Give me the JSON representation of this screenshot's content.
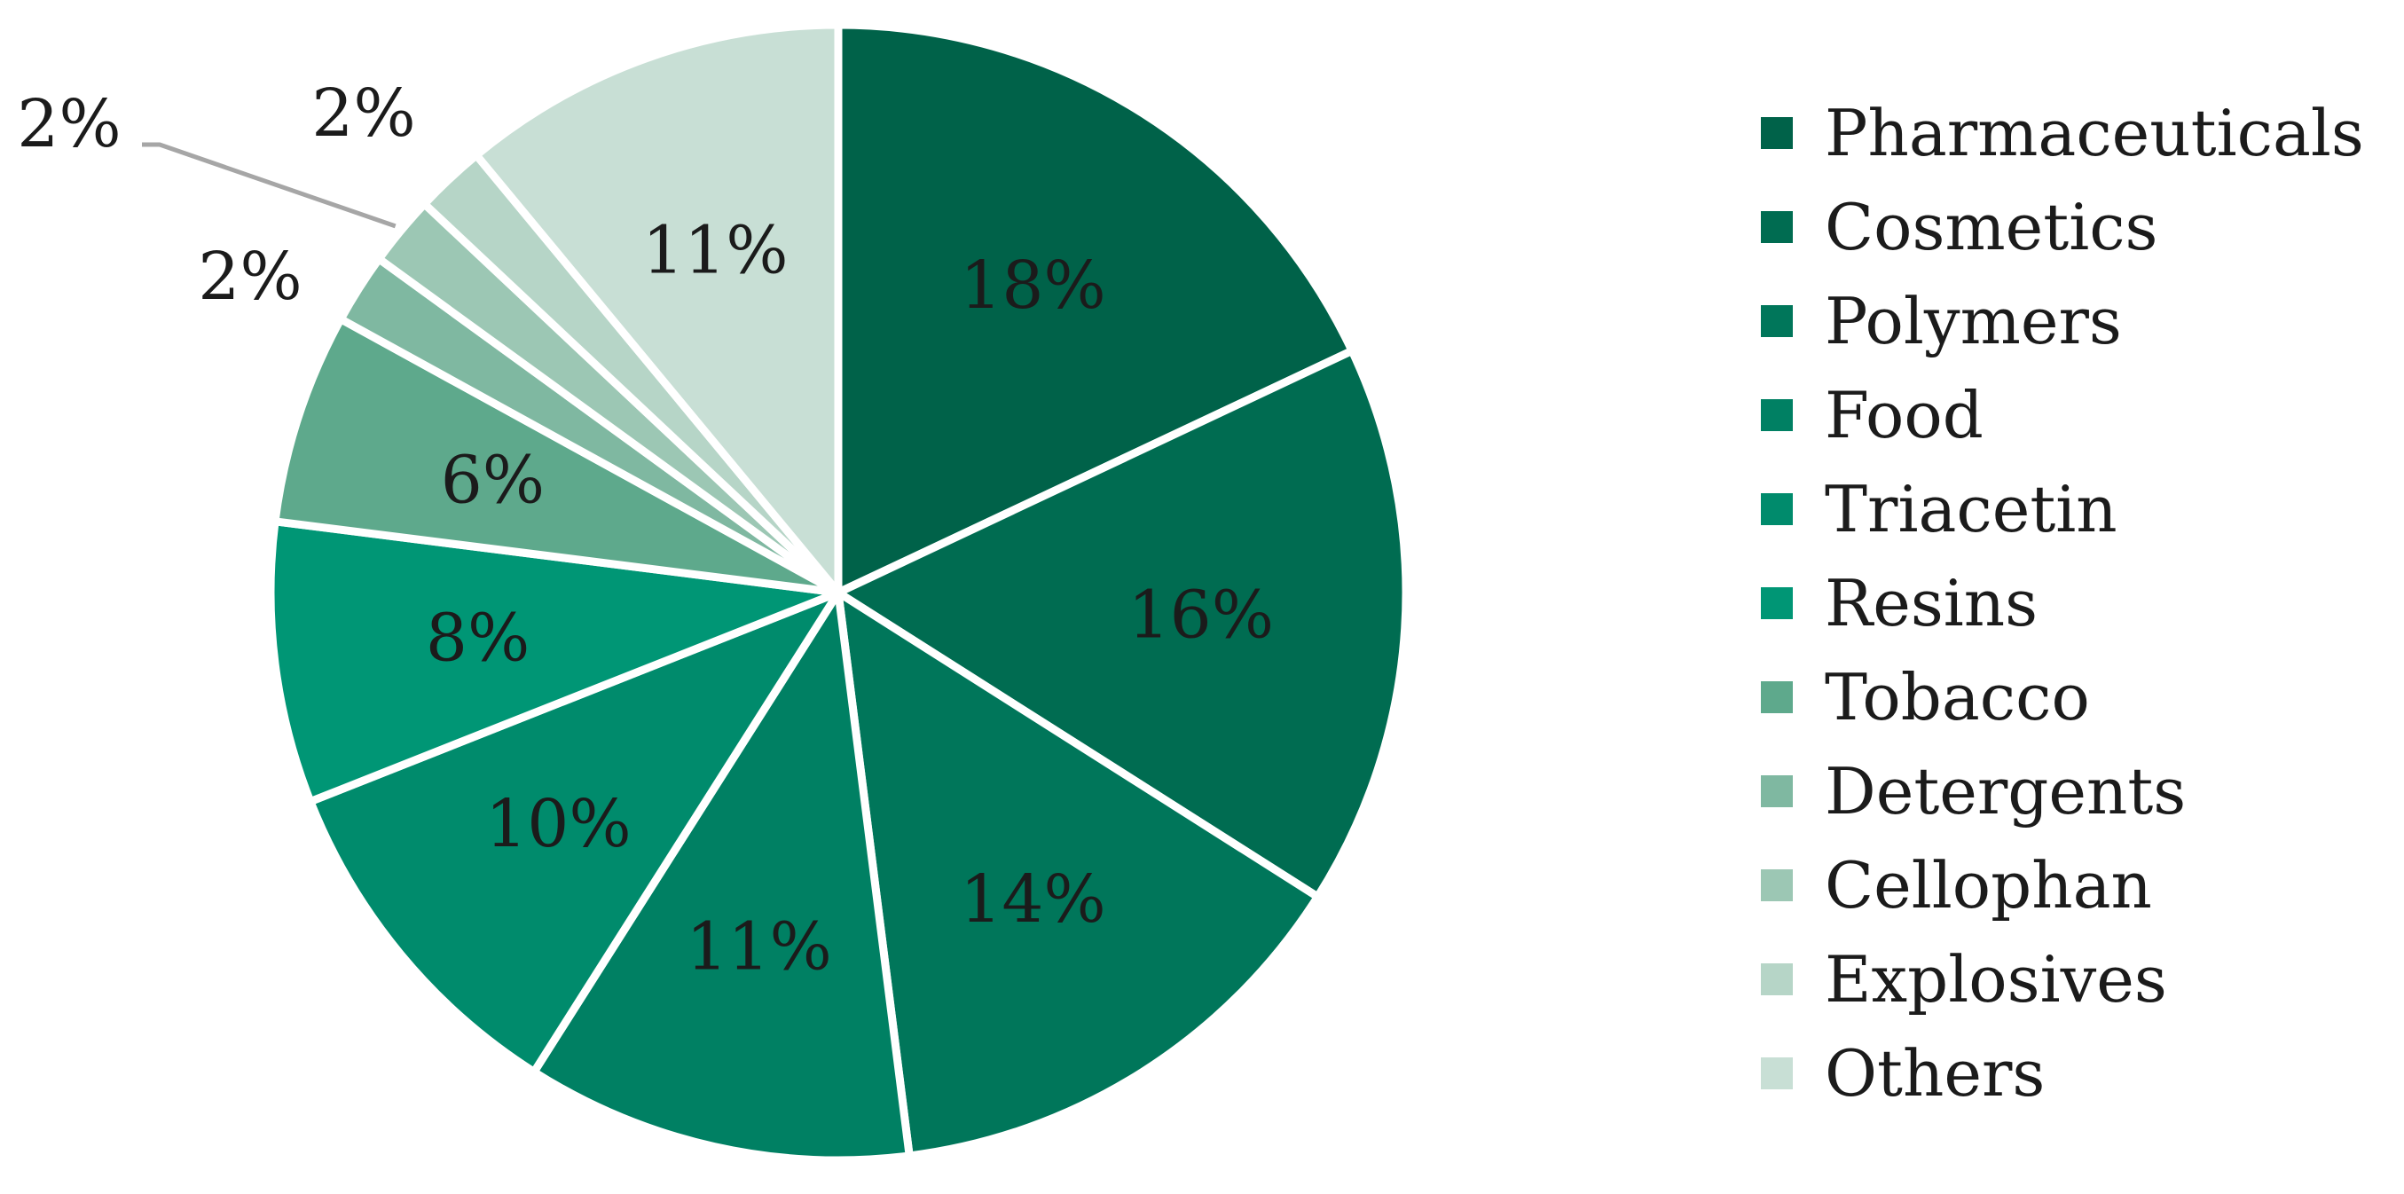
{
  "chart_data": {
    "type": "pie",
    "title": "",
    "legend_position": "right",
    "slices": [
      {
        "name": "Pharmaceuticals",
        "value": 18,
        "label": "18%",
        "color": "#006249"
      },
      {
        "name": "Cosmetics",
        "value": 16,
        "label": "16%",
        "color": "#006c51"
      },
      {
        "name": "Polymers",
        "value": 14,
        "label": "14%",
        "color": "#00765a"
      },
      {
        "name": "Food",
        "value": 11,
        "label": "11%",
        "color": "#008063"
      },
      {
        "name": "Triacetin",
        "value": 10,
        "label": "10%",
        "color": "#008b6c"
      },
      {
        "name": "Resins",
        "value": 8,
        "label": "8%",
        "color": "#009675"
      },
      {
        "name": "Tobacco",
        "value": 6,
        "label": "6%",
        "color": "#5ea98c"
      },
      {
        "name": "Detergents",
        "value": 2,
        "label": "2%",
        "color": "#7fb8a1"
      },
      {
        "name": "Cellophan",
        "value": 2,
        "label": "2%",
        "color": "#9cc7b4"
      },
      {
        "name": "Explosives",
        "value": 2,
        "label": "2%",
        "color": "#b6d5c7"
      },
      {
        "name": "Others",
        "value": 11,
        "label": "11%",
        "color": "#c8dfd5"
      }
    ]
  }
}
